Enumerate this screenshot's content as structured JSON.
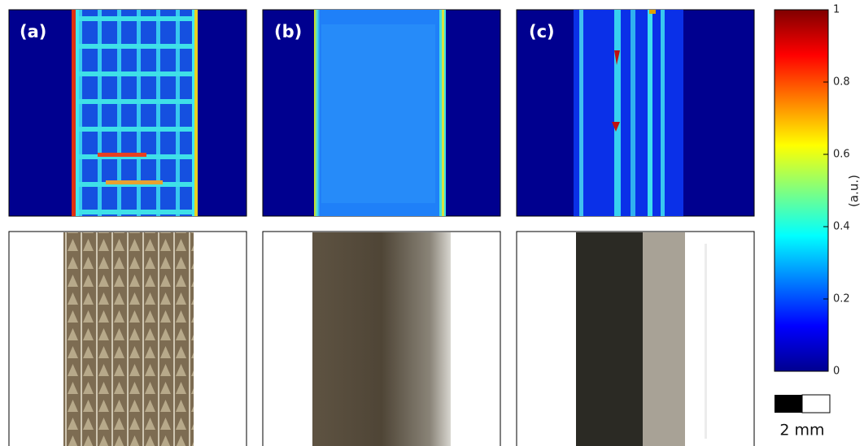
{
  "panels": [
    {
      "label": "(a)"
    },
    {
      "label": "(b)"
    },
    {
      "label": "(c)"
    }
  ],
  "colorbar": {
    "label": "(a.u.)",
    "lim": [
      0,
      1
    ],
    "ticks": [
      0,
      0.2,
      0.4,
      0.6,
      0.8,
      1
    ]
  },
  "scale_bar": {
    "label": "2 mm"
  }
}
